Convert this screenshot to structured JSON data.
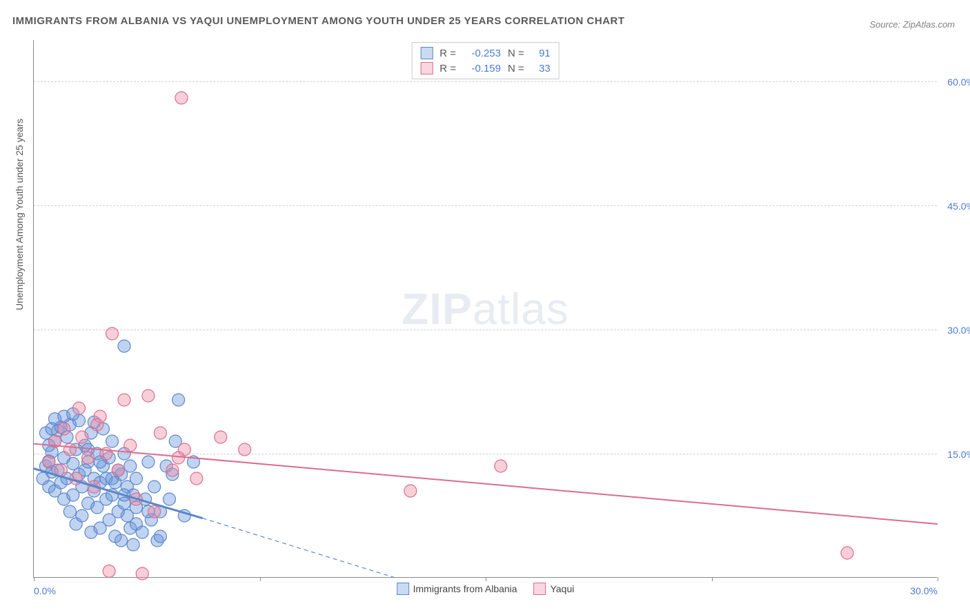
{
  "title": "IMMIGRANTS FROM ALBANIA VS YAQUI UNEMPLOYMENT AMONG YOUTH UNDER 25 YEARS CORRELATION CHART",
  "source_label": "Source: ZipAtlas.com",
  "watermark_bold": "ZIP",
  "watermark_light": "atlas",
  "ylabel": "Unemployment Among Youth under 25 years",
  "chart": {
    "type": "scatter",
    "xlim": [
      0,
      30
    ],
    "ylim": [
      0,
      65
    ],
    "xtick_positions": [
      0,
      7.5,
      15,
      22.5,
      30
    ],
    "xtick_labels": [
      "0.0%",
      "",
      "",
      "",
      "30.0%"
    ],
    "ytick_positions": [
      15,
      30,
      45,
      60
    ],
    "ytick_labels": [
      "15.0%",
      "30.0%",
      "45.0%",
      "60.0%"
    ],
    "background_color": "#ffffff",
    "grid_color": "#d0d0d0",
    "marker_radius": 9,
    "marker_opacity": 0.42,
    "marker_stroke_width": 1.2,
    "series": [
      {
        "name": "Immigrants from Albania",
        "color_fill": "#6a96dc",
        "color_stroke": "#5b86c9",
        "R": "-0.253",
        "N": "91",
        "trend": {
          "x1": 0,
          "y1": 13.2,
          "x2": 5.6,
          "y2": 7.2,
          "dash_after_x": 5.6,
          "dash_x2": 12.0,
          "dash_y2": 0,
          "solid_width": 3
        },
        "points": [
          [
            0.3,
            12.0
          ],
          [
            0.4,
            13.5
          ],
          [
            0.5,
            14.1
          ],
          [
            0.5,
            11.0
          ],
          [
            0.6,
            15.2
          ],
          [
            0.6,
            12.8
          ],
          [
            0.7,
            16.5
          ],
          [
            0.7,
            10.5
          ],
          [
            0.8,
            13.0
          ],
          [
            0.8,
            17.8
          ],
          [
            0.9,
            18.2
          ],
          [
            0.9,
            11.5
          ],
          [
            1.0,
            14.5
          ],
          [
            1.0,
            9.5
          ],
          [
            1.1,
            12.0
          ],
          [
            1.1,
            17.0
          ],
          [
            1.2,
            18.5
          ],
          [
            1.2,
            8.0
          ],
          [
            1.3,
            13.8
          ],
          [
            1.3,
            10.0
          ],
          [
            1.4,
            15.5
          ],
          [
            1.4,
            6.5
          ],
          [
            1.5,
            12.5
          ],
          [
            1.5,
            19.0
          ],
          [
            1.6,
            11.0
          ],
          [
            1.6,
            7.5
          ],
          [
            1.7,
            13.0
          ],
          [
            1.7,
            16.0
          ],
          [
            1.8,
            9.0
          ],
          [
            1.8,
            14.0
          ],
          [
            1.9,
            17.5
          ],
          [
            1.9,
            5.5
          ],
          [
            2.0,
            12.0
          ],
          [
            2.0,
            10.5
          ],
          [
            2.1,
            8.5
          ],
          [
            2.1,
            15.0
          ],
          [
            2.2,
            11.5
          ],
          [
            2.2,
            6.0
          ],
          [
            2.3,
            13.5
          ],
          [
            2.3,
            18.0
          ],
          [
            2.4,
            9.5
          ],
          [
            2.4,
            12.0
          ],
          [
            2.5,
            7.0
          ],
          [
            2.5,
            14.5
          ],
          [
            2.6,
            10.0
          ],
          [
            2.6,
            16.5
          ],
          [
            2.7,
            5.0
          ],
          [
            2.7,
            11.5
          ],
          [
            2.8,
            8.0
          ],
          [
            2.8,
            13.0
          ],
          [
            2.9,
            4.5
          ],
          [
            2.9,
            12.5
          ],
          [
            3.0,
            9.0
          ],
          [
            3.0,
            15.0
          ],
          [
            3.1,
            7.5
          ],
          [
            3.1,
            11.0
          ],
          [
            3.2,
            6.0
          ],
          [
            3.2,
            13.5
          ],
          [
            3.3,
            4.0
          ],
          [
            3.3,
            10.0
          ],
          [
            3.4,
            8.5
          ],
          [
            3.4,
            12.0
          ],
          [
            3.6,
            5.5
          ],
          [
            3.7,
            9.5
          ],
          [
            3.8,
            14.0
          ],
          [
            3.9,
            7.0
          ],
          [
            4.0,
            11.0
          ],
          [
            4.1,
            4.5
          ],
          [
            4.2,
            8.0
          ],
          [
            4.4,
            13.5
          ],
          [
            4.5,
            9.5
          ],
          [
            4.7,
            16.5
          ],
          [
            3.0,
            28.0
          ],
          [
            1.0,
            19.5
          ],
          [
            1.3,
            19.8
          ],
          [
            0.7,
            19.2
          ],
          [
            2.0,
            18.8
          ],
          [
            0.5,
            16.0
          ],
          [
            0.4,
            17.5
          ],
          [
            0.6,
            18.0
          ],
          [
            1.8,
            15.5
          ],
          [
            2.2,
            14.0
          ],
          [
            2.6,
            12.0
          ],
          [
            3.0,
            10.0
          ],
          [
            3.4,
            6.5
          ],
          [
            3.8,
            8.0
          ],
          [
            4.2,
            5.0
          ],
          [
            4.6,
            12.5
          ],
          [
            4.8,
            21.5
          ],
          [
            5.0,
            7.5
          ],
          [
            5.3,
            14.0
          ]
        ]
      },
      {
        "name": "Yaqui",
        "color_fill": "#eb8ca5",
        "color_stroke": "#dd6b8e",
        "R": "-0.159",
        "N": "33",
        "trend": {
          "x1": 0,
          "y1": 16.2,
          "x2": 30,
          "y2": 6.5,
          "solid_width": 2
        },
        "points": [
          [
            0.5,
            14.0
          ],
          [
            0.7,
            16.5
          ],
          [
            0.9,
            13.0
          ],
          [
            1.0,
            18.0
          ],
          [
            1.2,
            15.5
          ],
          [
            1.4,
            12.0
          ],
          [
            1.6,
            17.0
          ],
          [
            1.8,
            14.5
          ],
          [
            2.0,
            11.0
          ],
          [
            2.2,
            19.5
          ],
          [
            2.4,
            15.0
          ],
          [
            2.6,
            29.5
          ],
          [
            4.9,
            58.0
          ],
          [
            2.8,
            13.0
          ],
          [
            3.0,
            21.5
          ],
          [
            3.2,
            16.0
          ],
          [
            3.4,
            9.5
          ],
          [
            3.8,
            22.0
          ],
          [
            4.2,
            17.5
          ],
          [
            4.6,
            13.0
          ],
          [
            5.0,
            15.5
          ],
          [
            5.4,
            12.0
          ],
          [
            6.2,
            17.0
          ],
          [
            4.0,
            8.0
          ],
          [
            3.6,
            0.5
          ],
          [
            2.5,
            0.8
          ],
          [
            4.8,
            14.5
          ],
          [
            7.0,
            15.5
          ],
          [
            12.5,
            10.5
          ],
          [
            15.5,
            13.5
          ],
          [
            27.0,
            3.0
          ],
          [
            1.5,
            20.5
          ],
          [
            2.1,
            18.5
          ]
        ]
      }
    ]
  },
  "legend_top_labels": {
    "R": "R =",
    "N": "N ="
  },
  "legend_bottom": [
    {
      "swatch": "blue",
      "label": "Immigrants from Albania"
    },
    {
      "swatch": "pink",
      "label": "Yaqui"
    }
  ]
}
